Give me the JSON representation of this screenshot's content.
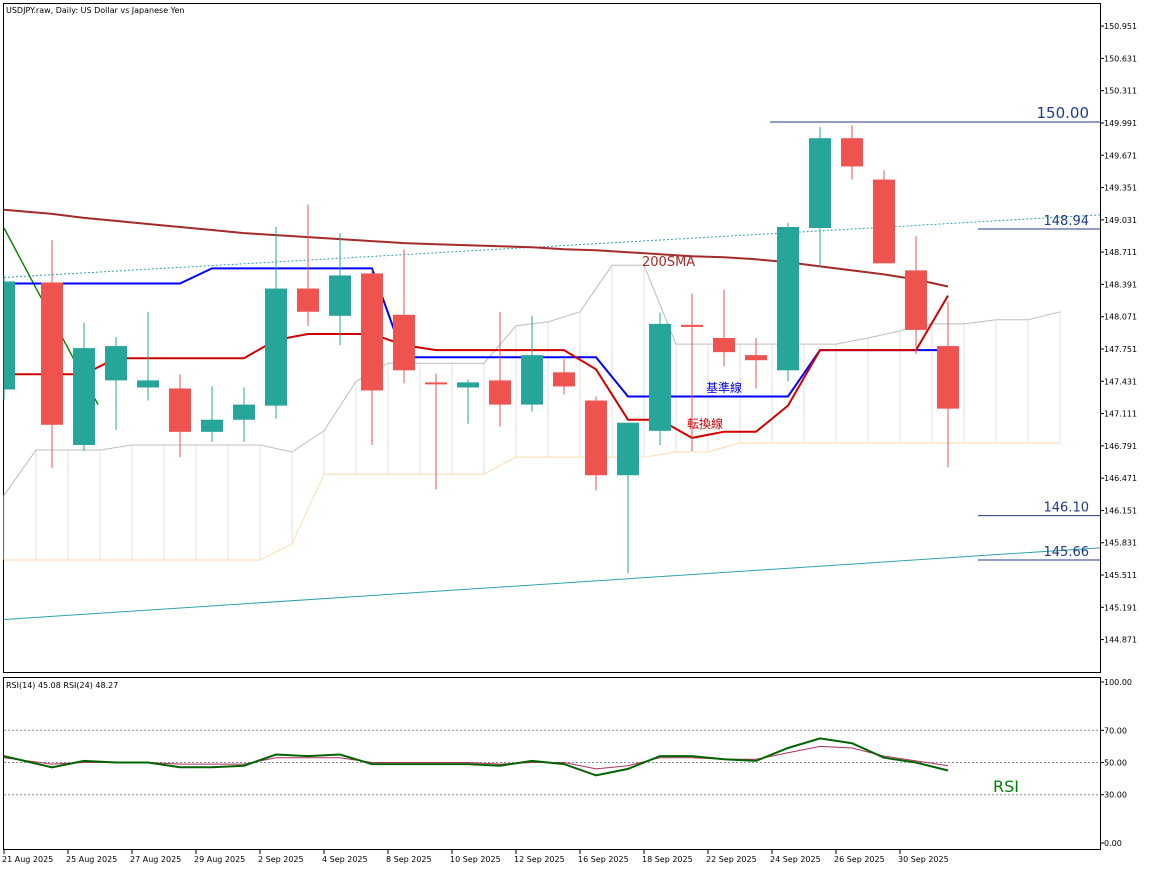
{
  "header": {
    "title": "USDJPY.raw, Daily:  US Dollar vs Japanese Yen"
  },
  "rsi_header": "RSI(14) 45.08 RSI(24) 48.27",
  "colors": {
    "bull": "#26a69a",
    "bear": "#ef5350",
    "kijun": "#0000ff",
    "tenkan": "#d00000",
    "sma200": "#a52a2a",
    "trend": "#008000",
    "channel": "#30a0b0",
    "cloud_a": "#bdbdbd",
    "cloud_b": "#ffdab0",
    "level": "#1f3a8a",
    "rsi14": "#006400",
    "rsi24": "#b03060"
  },
  "annotations": {
    "sma_label": "200SMA",
    "kijun_label": "基準線",
    "tenkan_label": "転換線",
    "rsi_label": "RSI"
  },
  "chart_data": [
    {
      "type": "candlestick",
      "title": "USDJPY.raw, Daily:  US Dollar vs Japanese Yen",
      "ylim": [
        144.55,
        151.17
      ],
      "y_ticks": [
        "150.951",
        "150.631",
        "150.311",
        "149.991",
        "149.671",
        "149.351",
        "149.031",
        "148.711",
        "148.391",
        "148.071",
        "147.751",
        "147.431",
        "147.111",
        "146.791",
        "146.471",
        "146.151",
        "145.831",
        "145.511",
        "145.191",
        "144.871"
      ],
      "x_labels": [
        "21 Aug 2025",
        "25 Aug 2025",
        "27 Aug 2025",
        "29 Aug 2025",
        "2 Sep 2025",
        "4 Sep 2025",
        "8 Sep 2025",
        "10 Sep 2025",
        "12 Sep 2025",
        "16 Sep 2025",
        "18 Sep 2025",
        "22 Sep 2025",
        "24 Sep 2025",
        "26 Sep 2025",
        "30 Sep 2025"
      ],
      "candles": [
        {
          "open": 147.35,
          "high": 148.48,
          "low": 147.25,
          "close": 148.42
        },
        {
          "open": 148.41,
          "high": 148.83,
          "low": 146.57,
          "close": 147.0
        },
        {
          "open": 146.8,
          "high": 148.01,
          "low": 146.74,
          "close": 147.76
        },
        {
          "open": 147.44,
          "high": 147.87,
          "low": 146.95,
          "close": 147.78
        },
        {
          "open": 147.37,
          "high": 148.12,
          "low": 147.24,
          "close": 147.44
        },
        {
          "open": 147.36,
          "high": 147.5,
          "low": 146.68,
          "close": 146.93
        },
        {
          "open": 146.93,
          "high": 147.38,
          "low": 146.83,
          "close": 147.05
        },
        {
          "open": 147.05,
          "high": 147.37,
          "low": 146.83,
          "close": 147.2
        },
        {
          "open": 147.19,
          "high": 148.96,
          "low": 147.06,
          "close": 148.35
        },
        {
          "open": 148.35,
          "high": 149.18,
          "low": 147.98,
          "close": 148.12
        },
        {
          "open": 148.08,
          "high": 148.9,
          "low": 147.79,
          "close": 148.48
        },
        {
          "open": 148.5,
          "high": 148.54,
          "low": 146.8,
          "close": 147.34
        },
        {
          "open": 148.09,
          "high": 148.74,
          "low": 147.41,
          "close": 147.54
        },
        {
          "open": 147.42,
          "high": 147.51,
          "low": 146.36,
          "close": 147.41
        },
        {
          "open": 147.37,
          "high": 147.45,
          "low": 147.01,
          "close": 147.42
        },
        {
          "open": 147.44,
          "high": 148.12,
          "low": 146.98,
          "close": 147.2
        },
        {
          "open": 147.2,
          "high": 148.08,
          "low": 147.13,
          "close": 147.69
        },
        {
          "open": 147.52,
          "high": 147.65,
          "low": 147.3,
          "close": 147.38
        },
        {
          "open": 147.24,
          "high": 147.28,
          "low": 146.35,
          "close": 146.5
        },
        {
          "open": 146.5,
          "high": 147.02,
          "low": 145.53,
          "close": 147.02
        },
        {
          "open": 146.94,
          "high": 148.11,
          "low": 146.8,
          "close": 148.0
        },
        {
          "open": 147.99,
          "high": 148.3,
          "low": 146.74,
          "close": 147.97
        },
        {
          "open": 147.86,
          "high": 148.34,
          "low": 147.58,
          "close": 147.72
        },
        {
          "open": 147.69,
          "high": 147.86,
          "low": 147.36,
          "close": 147.64
        },
        {
          "open": 147.54,
          "high": 149.0,
          "low": 147.43,
          "close": 148.96
        },
        {
          "open": 148.95,
          "high": 149.95,
          "low": 148.56,
          "close": 149.84
        },
        {
          "open": 149.84,
          "high": 149.97,
          "low": 149.43,
          "close": 149.56
        },
        {
          "open": 149.43,
          "high": 149.52,
          "low": 148.63,
          "close": 148.6
        },
        {
          "open": 148.53,
          "high": 148.87,
          "low": 147.7,
          "close": 147.94
        },
        {
          "open": 147.78,
          "high": 148.22,
          "low": 146.58,
          "close": 147.16
        }
      ],
      "kijun_sen": [
        148.4,
        148.4,
        148.4,
        148.4,
        148.4,
        148.4,
        148.55,
        148.55,
        148.55,
        148.55,
        148.55,
        148.55,
        147.67,
        147.67,
        147.67,
        147.67,
        147.67,
        147.67,
        147.67,
        147.28,
        147.28,
        147.28,
        147.28,
        147.28,
        147.28,
        147.74,
        147.74,
        147.74,
        147.74,
        147.74
      ],
      "tenkan_sen": [
        147.5,
        147.5,
        147.5,
        147.66,
        147.66,
        147.66,
        147.66,
        147.66,
        147.84,
        147.9,
        147.9,
        147.9,
        147.79,
        147.74,
        147.74,
        147.74,
        147.74,
        147.74,
        147.55,
        147.05,
        147.05,
        146.87,
        146.93,
        146.93,
        147.19,
        147.74,
        147.74,
        147.74,
        147.74,
        148.28
      ],
      "cloud_span_a": [
        146.3,
        146.75,
        146.75,
        146.75,
        146.8,
        146.8,
        146.8,
        146.8,
        146.8,
        146.73,
        146.94,
        147.43,
        147.61,
        147.61,
        147.61,
        147.61,
        147.98,
        148.02,
        148.12,
        148.58,
        148.58,
        147.8,
        147.8,
        147.8,
        147.8,
        147.8,
        147.8,
        147.86,
        147.93,
        148.0,
        148.0,
        148.04,
        148.04,
        148.12
      ],
      "cloud_span_b": [
        145.66,
        145.66,
        145.66,
        145.66,
        145.66,
        145.66,
        145.66,
        145.66,
        145.66,
        145.82,
        146.51,
        146.51,
        146.51,
        146.51,
        146.51,
        146.51,
        146.68,
        146.68,
        146.68,
        146.68,
        146.68,
        146.73,
        146.73,
        146.82,
        146.82,
        146.82,
        146.82,
        146.82,
        146.82,
        146.82,
        146.82,
        146.82,
        146.82,
        146.82
      ],
      "sma_200": [
        149.13,
        149.09,
        149.05,
        149.02,
        148.99,
        148.96,
        148.93,
        148.9,
        148.88,
        148.86,
        148.84,
        148.82,
        148.8,
        148.79,
        148.78,
        148.77,
        148.76,
        148.74,
        148.73,
        148.71,
        148.69,
        148.67,
        148.66,
        148.64,
        148.61,
        148.57,
        148.53,
        148.49,
        148.44,
        148.37
      ],
      "levels": [
        {
          "label": "150.00",
          "value": 150.0
        },
        {
          "label": "148.94",
          "value": 148.94
        },
        {
          "label": "146.10",
          "value": 146.1
        },
        {
          "label": "145.66",
          "value": 145.66
        }
      ]
    },
    {
      "type": "line",
      "title": "RSI(14) 45.08 RSI(24) 48.27",
      "ylim": [
        0,
        100
      ],
      "y_ticks": [
        "100.00",
        "70.00",
        "50.00",
        "30.00",
        "0.00"
      ],
      "series": [
        {
          "name": "RSI(14)",
          "values": [
            54,
            47,
            51,
            50,
            50,
            47,
            47,
            48,
            55,
            54,
            55,
            49,
            49,
            49,
            49,
            48,
            51,
            49,
            42,
            46,
            54,
            54,
            52,
            51,
            59,
            65,
            62,
            53,
            50,
            45
          ]
        },
        {
          "name": "RSI(24)",
          "values": [
            53,
            49,
            50,
            50,
            50,
            49,
            49,
            49,
            53,
            53,
            53,
            50,
            50,
            50,
            50,
            49,
            50,
            50,
            46,
            48,
            53,
            53,
            52,
            52,
            56,
            60,
            59,
            54,
            51,
            48
          ]
        }
      ]
    }
  ]
}
